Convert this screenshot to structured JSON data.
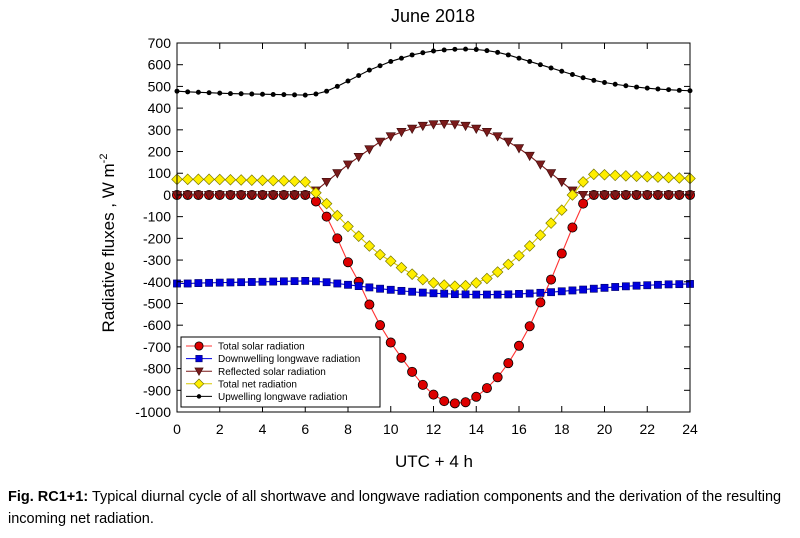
{
  "chart_data": {
    "type": "line",
    "title": "June 2018",
    "xlabel": "UTC + 4 h",
    "ylabel_main": "Radiative fluxes , W m",
    "ylabel_exp": "-2",
    "xlim": [
      0,
      24
    ],
    "ylim": [
      -1000,
      700
    ],
    "xticks": [
      0,
      2,
      4,
      6,
      8,
      10,
      12,
      14,
      16,
      18,
      20,
      22,
      24
    ],
    "yticks": [
      -1000,
      -900,
      -800,
      -700,
      -600,
      -500,
      -400,
      -300,
      -200,
      -100,
      0,
      100,
      200,
      300,
      400,
      500,
      600,
      700
    ],
    "grid": false,
    "legend_position": "bottom-left",
    "series": [
      {
        "name": "Total solar radiation",
        "marker": "circle",
        "color": "#dd0000",
        "line_color": "#ff3333",
        "x": [
          0,
          0.5,
          1,
          1.5,
          2,
          2.5,
          3,
          3.5,
          4,
          4.5,
          5,
          5.5,
          6,
          6.5,
          7,
          7.5,
          8,
          8.5,
          9,
          9.5,
          10,
          10.5,
          11,
          11.5,
          12,
          12.5,
          13,
          13.5,
          14,
          14.5,
          15,
          15.5,
          16,
          16.5,
          17,
          17.5,
          18,
          18.5,
          19,
          19.5,
          20,
          20.5,
          21,
          21.5,
          22,
          22.5,
          23,
          23.5,
          24
        ],
        "y": [
          0,
          0,
          0,
          0,
          0,
          0,
          0,
          0,
          0,
          0,
          0,
          0,
          0,
          -30,
          -100,
          -200,
          -310,
          -400,
          -505,
          -600,
          -680,
          -750,
          -815,
          -875,
          -920,
          -950,
          -960,
          -955,
          -930,
          -890,
          -840,
          -775,
          -695,
          -605,
          -495,
          -390,
          -270,
          -150,
          -40,
          0,
          0,
          0,
          0,
          0,
          0,
          0,
          0,
          0,
          0
        ]
      },
      {
        "name": "Downwelling longwave radiation",
        "marker": "square",
        "color": "#0000dd",
        "line_color": "#0000dd",
        "x": [
          0,
          0.5,
          1,
          1.5,
          2,
          2.5,
          3,
          3.5,
          4,
          4.5,
          5,
          5.5,
          6,
          6.5,
          7,
          7.5,
          8,
          8.5,
          9,
          9.5,
          10,
          10.5,
          11,
          11.5,
          12,
          12.5,
          13,
          13.5,
          14,
          14.5,
          15,
          15.5,
          16,
          16.5,
          17,
          17.5,
          18,
          18.5,
          19,
          19.5,
          20,
          20.5,
          21,
          21.5,
          22,
          22.5,
          23,
          23.5,
          24
        ],
        "y": [
          -408,
          -408,
          -406,
          -405,
          -404,
          -403,
          -402,
          -401,
          -400,
          -399,
          -398,
          -397,
          -396,
          -398,
          -402,
          -408,
          -414,
          -420,
          -426,
          -432,
          -437,
          -442,
          -446,
          -450,
          -453,
          -455,
          -457,
          -458,
          -459,
          -459,
          -459,
          -458,
          -456,
          -454,
          -451,
          -448,
          -444,
          -440,
          -436,
          -432,
          -428,
          -424,
          -421,
          -418,
          -416,
          -414,
          -412,
          -411,
          -410
        ]
      },
      {
        "name": "Reflected solar radiation",
        "marker": "triangle-down",
        "color": "#7a1a1a",
        "line_color": "#7a1a1a",
        "x": [
          0,
          0.5,
          1,
          1.5,
          2,
          2.5,
          3,
          3.5,
          4,
          4.5,
          5,
          5.5,
          6,
          6.5,
          7,
          7.5,
          8,
          8.5,
          9,
          9.5,
          10,
          10.5,
          11,
          11.5,
          12,
          12.5,
          13,
          13.5,
          14,
          14.5,
          15,
          15.5,
          16,
          16.5,
          17,
          17.5,
          18,
          18.5,
          19,
          19.5,
          20,
          20.5,
          21,
          21.5,
          22,
          22.5,
          23,
          23.5,
          24
        ],
        "y": [
          0,
          0,
          0,
          0,
          0,
          0,
          0,
          0,
          0,
          0,
          0,
          0,
          0,
          20,
          60,
          100,
          140,
          175,
          210,
          245,
          270,
          290,
          305,
          318,
          325,
          327,
          325,
          318,
          305,
          290,
          270,
          245,
          215,
          180,
          140,
          100,
          60,
          20,
          0,
          0,
          0,
          0,
          0,
          0,
          0,
          0,
          0,
          0,
          0
        ]
      },
      {
        "name": "Total net radiation",
        "marker": "diamond",
        "color": "#ffee00",
        "line_color": "#d8c800",
        "x": [
          0,
          0.5,
          1,
          1.5,
          2,
          2.5,
          3,
          3.5,
          4,
          4.5,
          5,
          5.5,
          6,
          6.5,
          7,
          7.5,
          8,
          8.5,
          9,
          9.5,
          10,
          10.5,
          11,
          11.5,
          12,
          12.5,
          13,
          13.5,
          14,
          14.5,
          15,
          15.5,
          16,
          16.5,
          17,
          17.5,
          18,
          18.5,
          19,
          19.5,
          20,
          20.5,
          21,
          21.5,
          22,
          22.5,
          23,
          23.5,
          24
        ],
        "y": [
          72,
          72,
          72,
          72,
          71,
          70,
          69,
          68,
          67,
          66,
          65,
          63,
          60,
          10,
          -40,
          -95,
          -145,
          -190,
          -235,
          -275,
          -305,
          -335,
          -365,
          -390,
          -405,
          -415,
          -420,
          -418,
          -405,
          -385,
          -355,
          -320,
          -280,
          -235,
          -185,
          -130,
          -70,
          0,
          60,
          95,
          93,
          90,
          88,
          86,
          84,
          82,
          80,
          78,
          76
        ]
      },
      {
        "name": "Upwelling longwave radiation",
        "marker": "small-circle",
        "color": "#000000",
        "line_color": "#000000",
        "x": [
          0,
          0.5,
          1,
          1.5,
          2,
          2.5,
          3,
          3.5,
          4,
          4.5,
          5,
          5.5,
          6,
          6.5,
          7,
          7.5,
          8,
          8.5,
          9,
          9.5,
          10,
          10.5,
          11,
          11.5,
          12,
          12.5,
          13,
          13.5,
          14,
          14.5,
          15,
          15.5,
          16,
          16.5,
          17,
          17.5,
          18,
          18.5,
          19,
          19.5,
          20,
          20.5,
          21,
          21.5,
          22,
          22.5,
          23,
          23.5,
          24
        ],
        "y": [
          478,
          475,
          473,
          471,
          469,
          467,
          466,
          465,
          464,
          463,
          462,
          461,
          460,
          465,
          478,
          500,
          525,
          550,
          575,
          595,
          615,
          630,
          645,
          655,
          663,
          668,
          671,
          672,
          670,
          665,
          657,
          645,
          630,
          615,
          600,
          585,
          570,
          555,
          540,
          528,
          518,
          510,
          503,
          497,
          492,
          488,
          485,
          482,
          480
        ]
      }
    ]
  },
  "caption": {
    "label": "Fig. RC1+1:",
    "text": " Typical diurnal cycle of all shortwave and longwave radiation components and the derivation of the resulting incoming net radiation."
  }
}
